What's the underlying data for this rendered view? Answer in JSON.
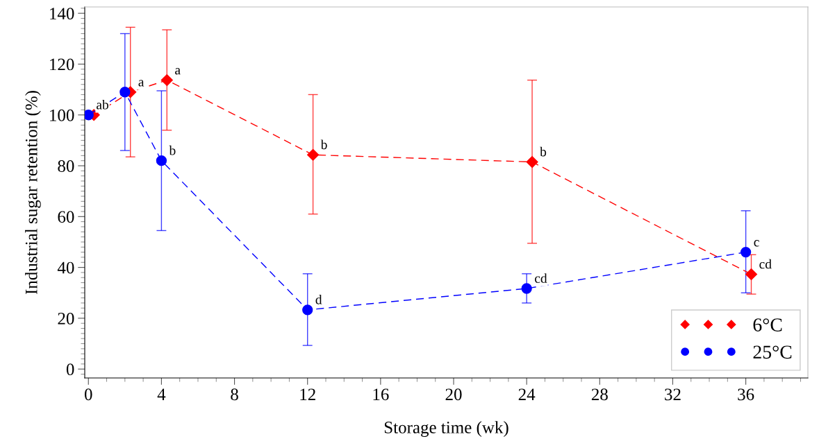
{
  "chart_data": {
    "type": "line",
    "xlabel": "Storage time (wk)",
    "ylabel": "Industrial sugar retention (%)",
    "xlim": [
      -0.2,
      39.4
    ],
    "xticks": [
      0,
      4,
      8,
      12,
      16,
      20,
      24,
      28,
      32,
      36
    ],
    "ylim": [
      -3.5,
      142.5
    ],
    "yticks": [
      0,
      20,
      40,
      60,
      80,
      100,
      120,
      140
    ],
    "grid": false,
    "legend": "bottom right",
    "line_style": "dashed",
    "series": [
      {
        "name": "6°C",
        "color": "#ff0000",
        "marker": "diamond",
        "x": [
          0.3,
          2.3,
          4.3,
          12.3,
          24.3,
          36.3
        ],
        "values": [
          100,
          109,
          113.7,
          84.3,
          81.5,
          37.3
        ],
        "errors": [
          null,
          [
            83.5,
            134.5
          ],
          [
            94,
            133.5
          ],
          [
            61,
            108
          ],
          [
            49.5,
            113.7
          ],
          [
            29.5,
            45
          ]
        ]
      },
      {
        "name": "25°C",
        "color": "#0000ff",
        "marker": "circle",
        "x": [
          0,
          2,
          4,
          12,
          24,
          36
        ],
        "values": [
          100,
          109,
          82,
          23.3,
          31.7,
          46
        ],
        "errors": [
          null,
          [
            86,
            132
          ],
          [
            54.5,
            109.5
          ],
          [
            9.3,
            37.5
          ],
          [
            26,
            37.5
          ],
          [
            30,
            62.3
          ]
        ]
      }
    ],
    "annotations": [
      {
        "text": "ab",
        "x": 0,
        "y": 100
      },
      {
        "text": "a",
        "x": 2.3,
        "y": 109
      },
      {
        "text": "a",
        "x": 4.3,
        "y": 113.7
      },
      {
        "text": "b",
        "x": 4,
        "y": 82
      },
      {
        "text": "b",
        "x": 12.3,
        "y": 84.3
      },
      {
        "text": "b",
        "x": 24.3,
        "y": 81.5
      },
      {
        "text": "d",
        "x": 12,
        "y": 23.3
      },
      {
        "text": "cd",
        "x": 24,
        "y": 31.7
      },
      {
        "text": "c",
        "x": 36,
        "y": 46
      },
      {
        "text": "cd",
        "x": 36.3,
        "y": 37.3
      }
    ]
  }
}
